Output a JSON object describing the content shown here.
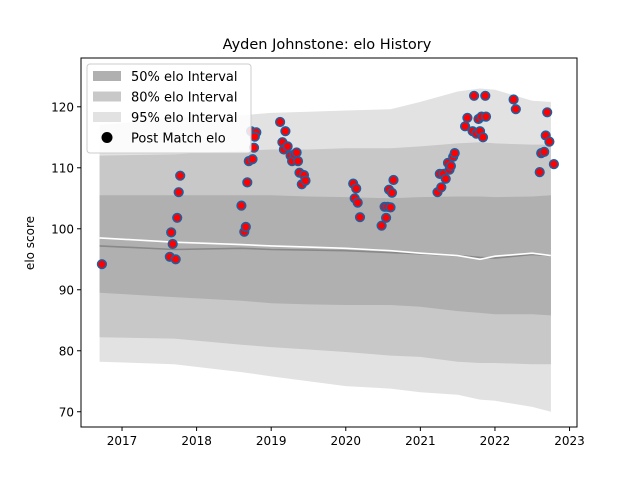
{
  "chart_data": {
    "type": "line",
    "title": "Ayden Johnstone: elo History",
    "xlabel": "",
    "ylabel": "elo score",
    "xlim": [
      2016.45,
      2023.1
    ],
    "ylim": [
      67.5,
      128
    ],
    "xticks": [
      2017,
      2018,
      2019,
      2020,
      2021,
      2022,
      2023
    ],
    "yticks": [
      70,
      80,
      90,
      100,
      110,
      120
    ],
    "grid": false,
    "legend_position": "top-left",
    "legend": [
      {
        "label": "50% elo Interval",
        "kind": "band"
      },
      {
        "label": "80% elo Interval",
        "kind": "band"
      },
      {
        "label": "95% elo Interval",
        "kind": "band"
      },
      {
        "label": "Post Match elo",
        "kind": "marker"
      }
    ],
    "colors": {
      "band50": "#b0b0b0",
      "band80": "#c8c8c8",
      "band95": "#e2e2e2",
      "median_line": "#888888",
      "mean_line": "#ffffff",
      "marker_face": "#ff0000",
      "marker_edge": "#1f5fa0"
    },
    "x": [
      2016.7,
      2017.7,
      2018.6,
      2019.0,
      2019.5,
      2020.0,
      2020.6,
      2021.0,
      2021.5,
      2021.8,
      2022.0,
      2022.5,
      2022.75
    ],
    "series": [
      {
        "name": "95% elo Interval",
        "lower": [
          78.2,
          77.8,
          76.5,
          75.8,
          75.0,
          74.2,
          73.8,
          73.2,
          72.8,
          72.0,
          71.8,
          70.8,
          70.0
        ],
        "upper": [
          117.0,
          118.2,
          118.6,
          119.0,
          119.2,
          119.4,
          119.6,
          120.8,
          122.5,
          123.0,
          122.8,
          121.0,
          120.8
        ]
      },
      {
        "name": "80% elo Interval",
        "lower": [
          82.2,
          82.0,
          81.0,
          80.6,
          80.2,
          79.8,
          79.2,
          79.0,
          78.2,
          78.0,
          78.0,
          77.8,
          77.8
        ],
        "upper": [
          112.0,
          112.2,
          112.8,
          113.0,
          113.0,
          113.2,
          113.2,
          113.5,
          114.0,
          114.2,
          114.0,
          113.8,
          113.8
        ]
      },
      {
        "name": "50% elo Interval",
        "lower": [
          89.5,
          88.8,
          88.2,
          87.8,
          87.6,
          87.5,
          87.5,
          87.2,
          86.5,
          86.2,
          86.0,
          86.0,
          85.8
        ],
        "upper": [
          105.5,
          105.5,
          105.5,
          105.5,
          105.3,
          105.2,
          105.0,
          105.2,
          105.3,
          105.3,
          105.2,
          105.3,
          105.5
        ]
      },
      {
        "name": "median",
        "values": [
          97.2,
          96.6,
          96.8,
          96.6,
          96.5,
          96.4,
          96.1,
          95.9,
          95.6,
          95.3,
          95.2,
          95.8,
          95.6
        ]
      },
      {
        "name": "mean",
        "values": [
          98.5,
          97.8,
          97.4,
          97.2,
          97.0,
          96.8,
          96.4,
          96.0,
          95.6,
          95.0,
          95.5,
          96.0,
          95.6
        ]
      }
    ],
    "points": [
      {
        "x": 2016.73,
        "y": 94.2
      },
      {
        "x": 2017.64,
        "y": 95.4
      },
      {
        "x": 2017.66,
        "y": 99.4
      },
      {
        "x": 2017.68,
        "y": 97.5
      },
      {
        "x": 2017.72,
        "y": 95.0
      },
      {
        "x": 2017.74,
        "y": 101.8
      },
      {
        "x": 2017.76,
        "y": 106.0
      },
      {
        "x": 2017.78,
        "y": 108.7
      },
      {
        "x": 2018.6,
        "y": 103.8
      },
      {
        "x": 2018.64,
        "y": 99.5
      },
      {
        "x": 2018.66,
        "y": 100.3
      },
      {
        "x": 2018.68,
        "y": 107.6
      },
      {
        "x": 2018.7,
        "y": 111.1
      },
      {
        "x": 2018.73,
        "y": 116.0
      },
      {
        "x": 2018.75,
        "y": 111.4
      },
      {
        "x": 2018.77,
        "y": 113.3
      },
      {
        "x": 2018.8,
        "y": 115.8
      },
      {
        "x": 2018.78,
        "y": 115.1
      },
      {
        "x": 2019.12,
        "y": 117.5
      },
      {
        "x": 2019.15,
        "y": 114.2
      },
      {
        "x": 2019.17,
        "y": 113.0
      },
      {
        "x": 2019.19,
        "y": 116.0
      },
      {
        "x": 2019.22,
        "y": 113.5
      },
      {
        "x": 2019.26,
        "y": 112.0
      },
      {
        "x": 2019.28,
        "y": 111.1
      },
      {
        "x": 2019.31,
        "y": 112.2
      },
      {
        "x": 2019.34,
        "y": 112.5
      },
      {
        "x": 2019.36,
        "y": 111.1
      },
      {
        "x": 2019.38,
        "y": 109.2
      },
      {
        "x": 2019.41,
        "y": 107.3
      },
      {
        "x": 2019.44,
        "y": 108.8
      },
      {
        "x": 2019.46,
        "y": 107.9
      },
      {
        "x": 2020.1,
        "y": 107.4
      },
      {
        "x": 2020.12,
        "y": 105.0
      },
      {
        "x": 2020.14,
        "y": 106.6
      },
      {
        "x": 2020.16,
        "y": 104.3
      },
      {
        "x": 2020.19,
        "y": 101.9
      },
      {
        "x": 2020.48,
        "y": 100.5
      },
      {
        "x": 2020.52,
        "y": 103.6
      },
      {
        "x": 2020.54,
        "y": 101.8
      },
      {
        "x": 2020.56,
        "y": 103.6
      },
      {
        "x": 2020.58,
        "y": 106.4
      },
      {
        "x": 2020.6,
        "y": 103.5
      },
      {
        "x": 2020.62,
        "y": 105.9
      },
      {
        "x": 2020.64,
        "y": 108.0
      },
      {
        "x": 2021.23,
        "y": 106.0
      },
      {
        "x": 2021.26,
        "y": 109.0
      },
      {
        "x": 2021.28,
        "y": 106.8
      },
      {
        "x": 2021.31,
        "y": 109.0
      },
      {
        "x": 2021.34,
        "y": 108.2
      },
      {
        "x": 2021.37,
        "y": 110.8
      },
      {
        "x": 2021.39,
        "y": 109.7
      },
      {
        "x": 2021.41,
        "y": 110.3
      },
      {
        "x": 2021.44,
        "y": 111.8
      },
      {
        "x": 2021.46,
        "y": 112.4
      },
      {
        "x": 2021.6,
        "y": 116.8
      },
      {
        "x": 2021.63,
        "y": 118.2
      },
      {
        "x": 2021.7,
        "y": 116.0
      },
      {
        "x": 2021.72,
        "y": 121.8
      },
      {
        "x": 2021.75,
        "y": 115.6
      },
      {
        "x": 2021.78,
        "y": 118.0
      },
      {
        "x": 2021.8,
        "y": 116.0
      },
      {
        "x": 2021.82,
        "y": 118.4
      },
      {
        "x": 2021.84,
        "y": 115.0
      },
      {
        "x": 2021.87,
        "y": 121.8
      },
      {
        "x": 2021.88,
        "y": 118.4
      },
      {
        "x": 2022.25,
        "y": 121.2
      },
      {
        "x": 2022.28,
        "y": 119.6
      },
      {
        "x": 2022.6,
        "y": 109.3
      },
      {
        "x": 2022.62,
        "y": 112.4
      },
      {
        "x": 2022.66,
        "y": 112.6
      },
      {
        "x": 2022.68,
        "y": 115.3
      },
      {
        "x": 2022.7,
        "y": 119.1
      },
      {
        "x": 2022.73,
        "y": 114.3
      },
      {
        "x": 2022.79,
        "y": 110.6
      }
    ]
  }
}
